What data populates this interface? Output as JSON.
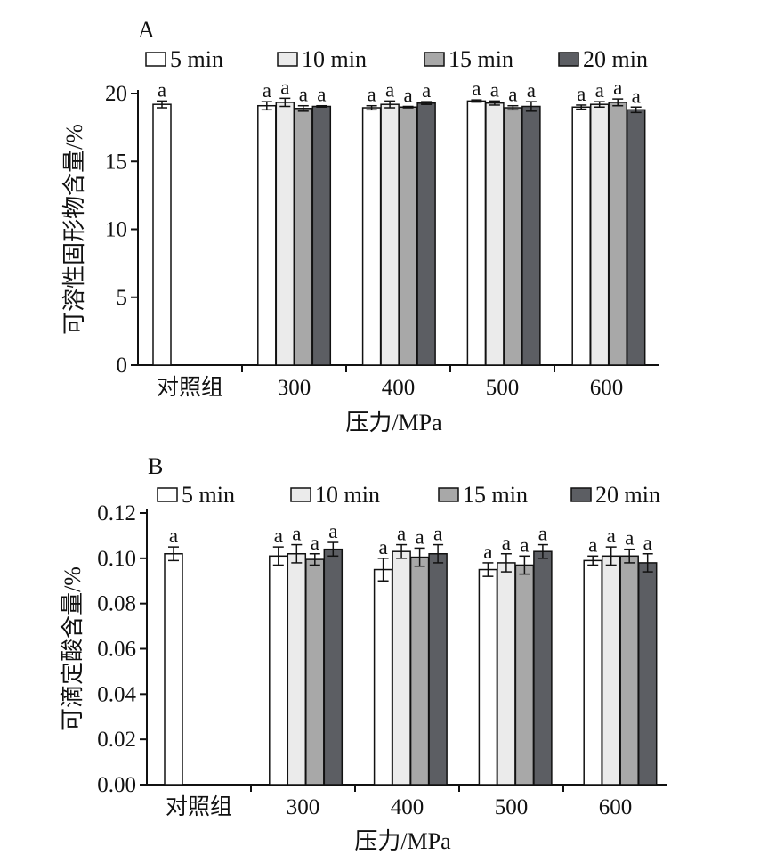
{
  "chart_data": [
    {
      "type": "bar",
      "panel_label": "A",
      "categories": [
        "对照组",
        "300",
        "400",
        "500",
        "600"
      ],
      "xlabel": "压力/MPa",
      "ylabel": "可溶性固形物含量/%",
      "ylim": [
        0,
        20
      ],
      "yticks": [
        "0",
        "5",
        "10",
        "15",
        "20"
      ],
      "series": [
        {
          "name": "5 min",
          "color": "#ffffff",
          "values": [
            19.2,
            19.1,
            18.95,
            19.45,
            19.0
          ],
          "errors": [
            0.25,
            0.3,
            0.15,
            0.08,
            0.15
          ],
          "labels": [
            "a",
            "a",
            "a",
            "a",
            "a"
          ]
        },
        {
          "name": "10 min",
          "color": "#ebebeb",
          "values": [
            null,
            19.35,
            19.2,
            19.3,
            19.2
          ],
          "errors": [
            null,
            0.3,
            0.25,
            0.15,
            0.2
          ],
          "labels": [
            null,
            "a",
            "a",
            "a",
            "a"
          ]
        },
        {
          "name": "15 min",
          "color": "#a8a8a8",
          "values": [
            null,
            18.9,
            19.0,
            18.95,
            19.35
          ],
          "errors": [
            null,
            0.2,
            0.05,
            0.15,
            0.25
          ],
          "labels": [
            null,
            "a",
            "a",
            "a",
            "a"
          ]
        },
        {
          "name": "20 min",
          "color": "#5c5e63",
          "values": [
            null,
            19.05,
            19.3,
            19.05,
            18.8
          ],
          "errors": [
            null,
            0.05,
            0.1,
            0.35,
            0.2
          ],
          "labels": [
            null,
            "a",
            "a",
            "a",
            "a"
          ]
        }
      ],
      "legend_position": "top"
    },
    {
      "type": "bar",
      "panel_label": "B",
      "categories": [
        "对照组",
        "300",
        "400",
        "500",
        "600"
      ],
      "xlabel": "压力/MPa",
      "ylabel": "可滴定酸含量/%",
      "ylim": [
        0,
        0.12
      ],
      "yticks": [
        "0.00",
        "0.02",
        "0.04",
        "0.06",
        "0.08",
        "0.10",
        "0.12"
      ],
      "series": [
        {
          "name": "5 min",
          "color": "#ffffff",
          "values": [
            0.102,
            0.101,
            0.095,
            0.095,
            0.099
          ],
          "errors": [
            0.003,
            0.004,
            0.005,
            0.003,
            0.002
          ],
          "labels": [
            "a",
            "a",
            "a",
            "a",
            "a"
          ]
        },
        {
          "name": "10 min",
          "color": "#ebebeb",
          "values": [
            null,
            0.102,
            0.103,
            0.098,
            0.101
          ],
          "errors": [
            null,
            0.004,
            0.003,
            0.004,
            0.004
          ],
          "labels": [
            null,
            "a",
            "a",
            "a",
            "a"
          ]
        },
        {
          "name": "15 min",
          "color": "#a8a8a8",
          "values": [
            null,
            0.0995,
            0.1005,
            0.097,
            0.101
          ],
          "errors": [
            null,
            0.0025,
            0.004,
            0.004,
            0.003
          ],
          "labels": [
            null,
            "a",
            "a",
            "a",
            "a"
          ]
        },
        {
          "name": "20 min",
          "color": "#5c5e63",
          "values": [
            null,
            0.104,
            0.102,
            0.103,
            0.098
          ],
          "errors": [
            null,
            0.003,
            0.004,
            0.003,
            0.004
          ],
          "labels": [
            null,
            "a",
            "a",
            "a",
            "a"
          ]
        }
      ],
      "legend_position": "top"
    }
  ]
}
